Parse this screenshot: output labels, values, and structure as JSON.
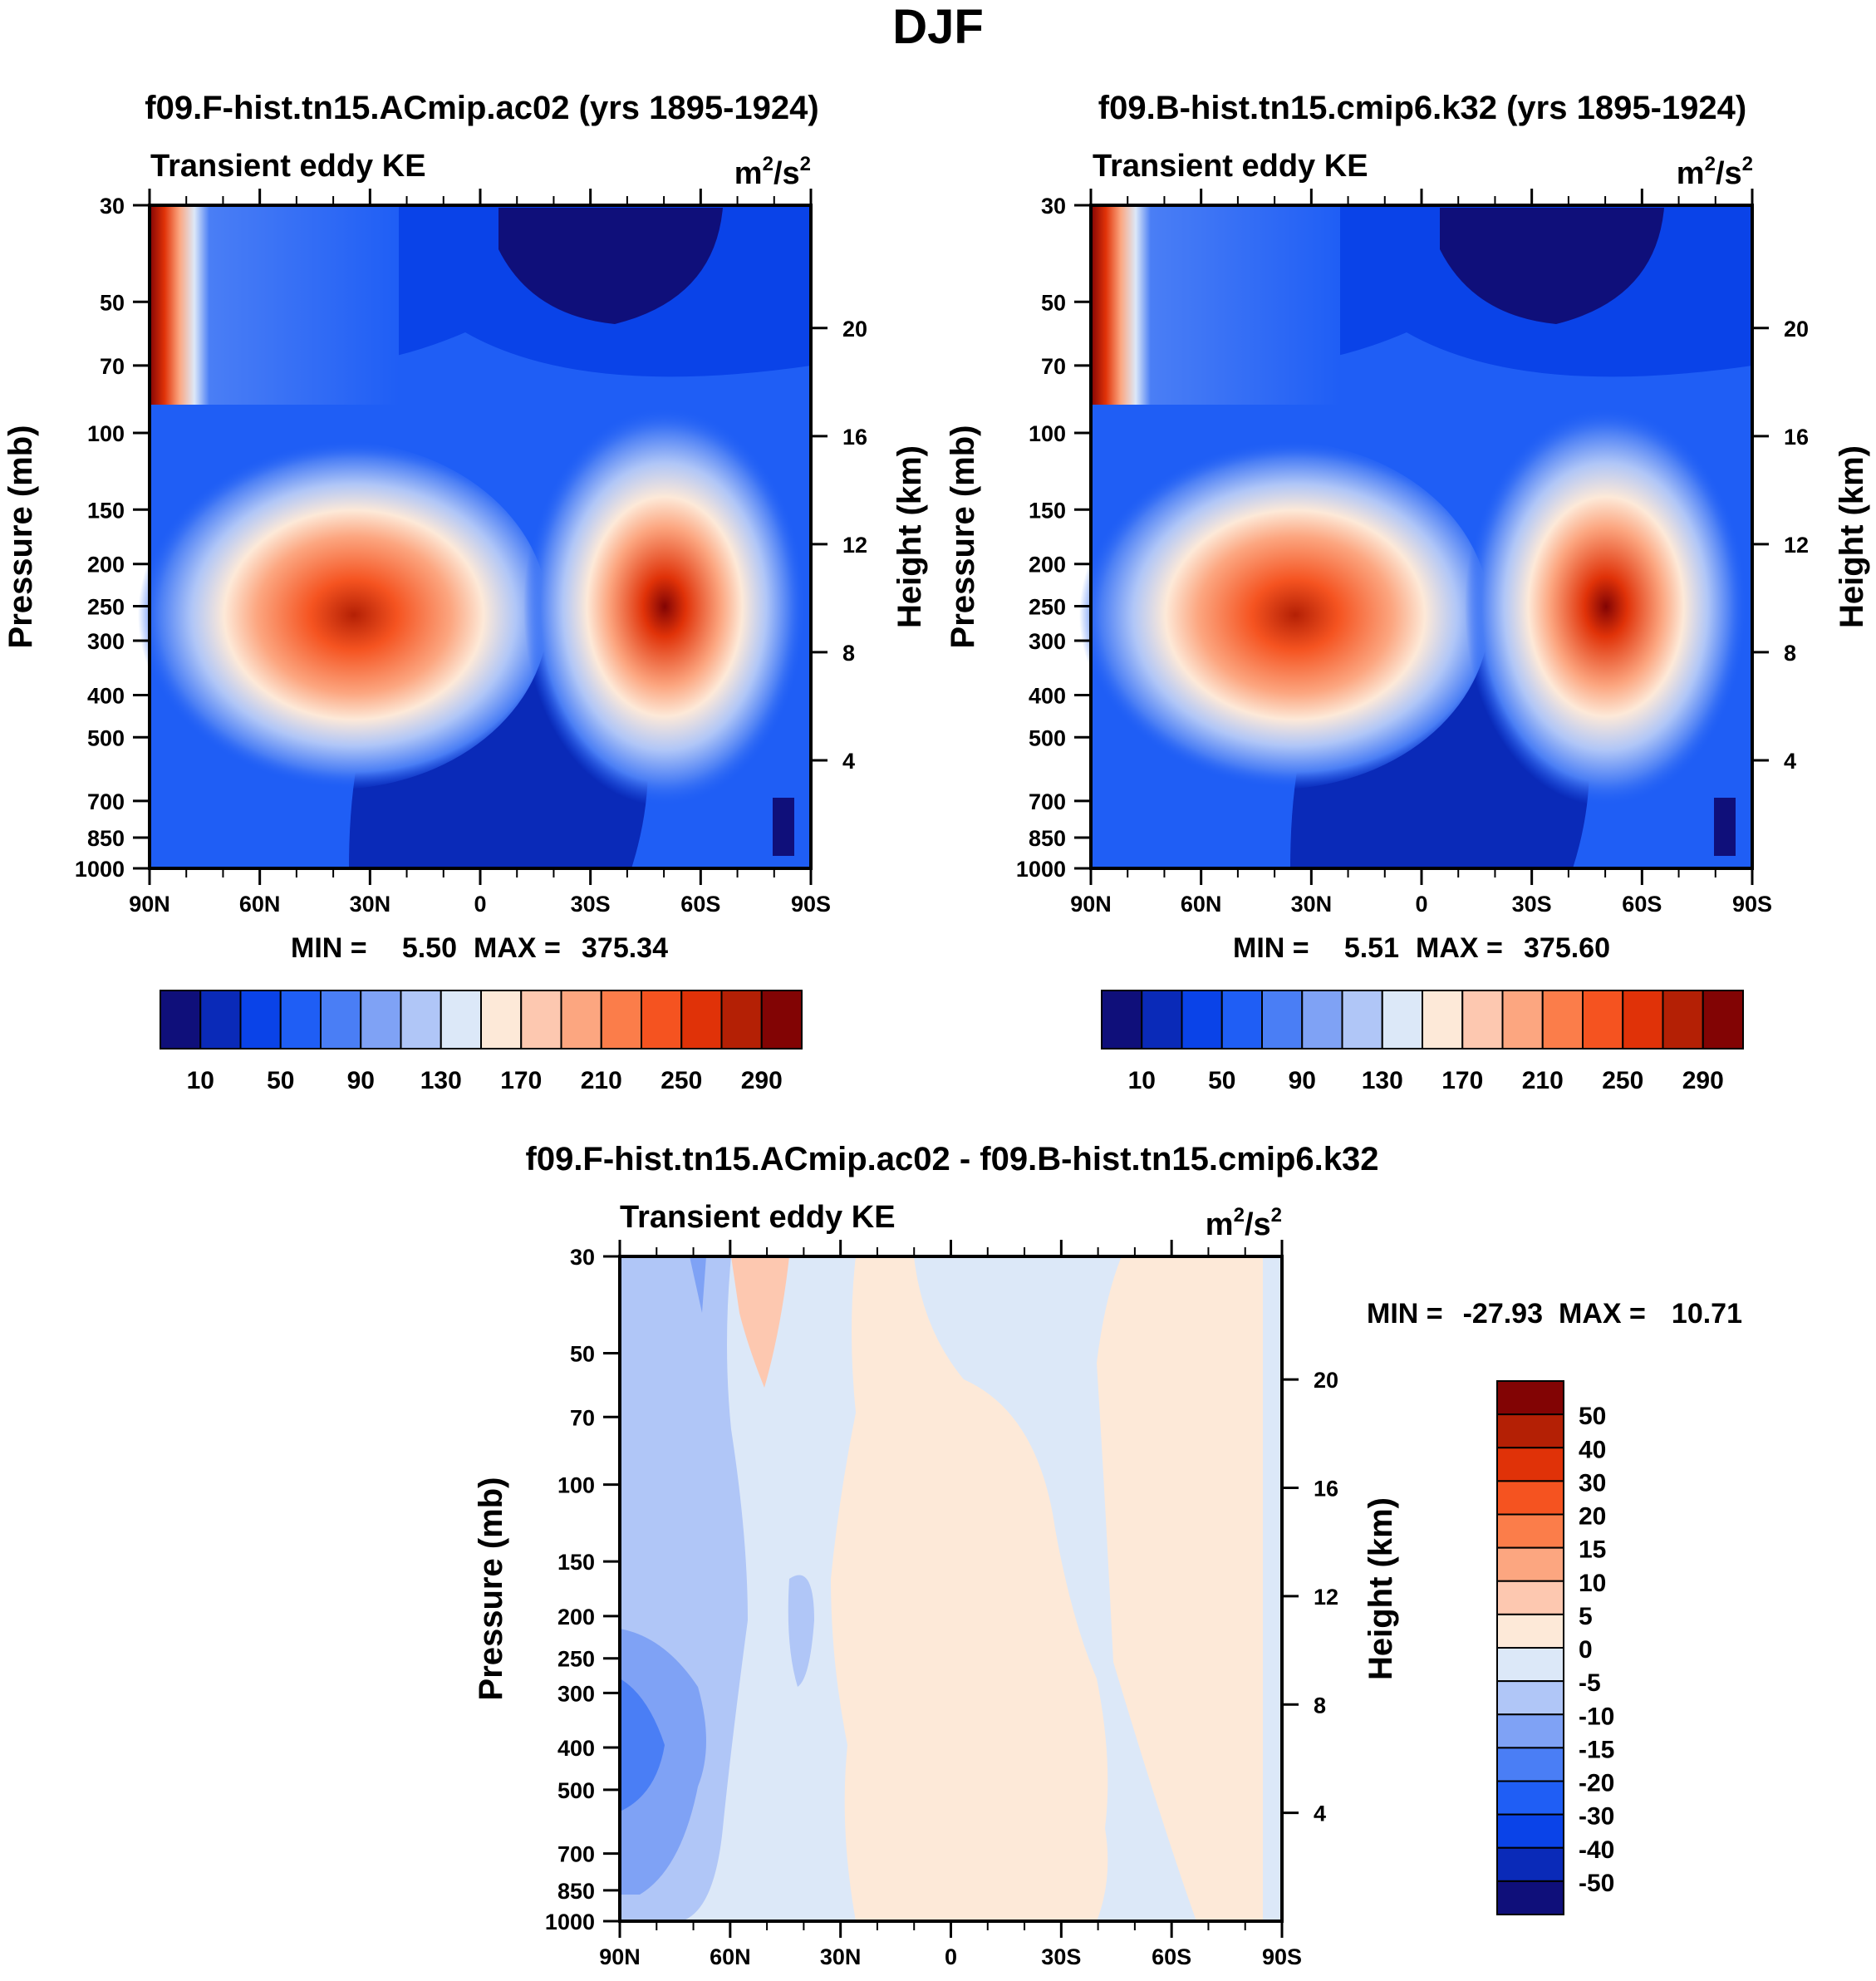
{
  "figure_title": "DJF",
  "colors": {
    "main_scale": [
      "#0f0f7a",
      "#0a2ab8",
      "#0a43e8",
      "#1f5ef5",
      "#4a7ef5",
      "#7fa2f5",
      "#b0c6f7",
      "#dce8f8",
      "#fde9d8",
      "#fdc8b0",
      "#fca680",
      "#fb7d4a",
      "#f55320",
      "#e03208",
      "#b42005",
      "#820404"
    ],
    "diff_scale": [
      "#0f0f7a",
      "#0a2ab8",
      "#0a43e8",
      "#1f5ef5",
      "#4a7ef5",
      "#7fa2f5",
      "#b0c6f7",
      "#dce8f8",
      "#fde9d8",
      "#fdc8b0",
      "#fca680",
      "#fb7d4a",
      "#f55320",
      "#e03208",
      "#b42005",
      "#820404"
    ]
  },
  "chart_data": [
    {
      "type": "heatmap",
      "title": "f09.F-hist.tn15.ACmip.ac02 (yrs 1895-1924)",
      "subtitle": "Transient eddy KE",
      "units": "m²/s²",
      "units_base": "m",
      "units_sup1": "2",
      "units_mid": "/s",
      "units_sup2": "2",
      "ylabel": "Pressure (mb)",
      "y2label": "Height (km)",
      "x_ticks": [
        "90N",
        "60N",
        "30N",
        "0",
        "30S",
        "60S",
        "90S"
      ],
      "x_values": [
        90,
        60,
        30,
        0,
        -30,
        -60,
        -90
      ],
      "y_ticks": [
        "30",
        "50",
        "70",
        "100",
        "150",
        "200",
        "250",
        "300",
        "400",
        "500",
        "700",
        "850",
        "1000"
      ],
      "y_values": [
        30,
        50,
        70,
        100,
        150,
        200,
        250,
        300,
        400,
        500,
        700,
        850,
        1000
      ],
      "y2_ticks": [
        "20",
        "16",
        "12",
        "8",
        "4"
      ],
      "y2_values": [
        20,
        16,
        12,
        8,
        4
      ],
      "stats": {
        "min_label": "MIN =",
        "min": "5.50",
        "max_label": "MAX =",
        "max": "375.34"
      },
      "field_peaks": [
        {
          "lat": 40,
          "p": 270,
          "value": 360
        },
        {
          "lat": -50,
          "p": 260,
          "value": 375
        }
      ],
      "colorbar": {
        "labels": [
          "10",
          "50",
          "90",
          "130",
          "170",
          "210",
          "250",
          "290"
        ]
      }
    },
    {
      "type": "heatmap",
      "title": "f09.B-hist.tn15.cmip6.k32 (yrs 1895-1924)",
      "subtitle": "Transient eddy KE",
      "units": "m²/s²",
      "units_base": "m",
      "units_sup1": "2",
      "units_mid": "/s",
      "units_sup2": "2",
      "ylabel": "Pressure (mb)",
      "y2label": "Height (km)",
      "x_ticks": [
        "90N",
        "60N",
        "30N",
        "0",
        "30S",
        "60S",
        "90S"
      ],
      "x_values": [
        90,
        60,
        30,
        0,
        -30,
        -60,
        -90
      ],
      "y_ticks": [
        "30",
        "50",
        "70",
        "100",
        "150",
        "200",
        "250",
        "300",
        "400",
        "500",
        "700",
        "850",
        "1000"
      ],
      "y_values": [
        30,
        50,
        70,
        100,
        150,
        200,
        250,
        300,
        400,
        500,
        700,
        850,
        1000
      ],
      "y2_ticks": [
        "20",
        "16",
        "12",
        "8",
        "4"
      ],
      "y2_values": [
        20,
        16,
        12,
        8,
        4
      ],
      "stats": {
        "min_label": "MIN =",
        "min": "5.51",
        "max_label": "MAX =",
        "max": "375.60"
      },
      "field_peaks": [
        {
          "lat": 40,
          "p": 270,
          "value": 360
        },
        {
          "lat": -50,
          "p": 260,
          "value": 376
        }
      ],
      "colorbar": {
        "labels": [
          "10",
          "50",
          "90",
          "130",
          "170",
          "210",
          "250",
          "290"
        ]
      }
    },
    {
      "type": "heatmap",
      "title": "f09.F-hist.tn15.ACmip.ac02 - f09.B-hist.tn15.cmip6.k32",
      "subtitle": "Transient eddy KE",
      "units": "m²/s²",
      "units_base": "m",
      "units_sup1": "2",
      "units_mid": "/s",
      "units_sup2": "2",
      "ylabel": "Pressure (mb)",
      "y2label": "Height (km)",
      "x_ticks": [
        "90N",
        "60N",
        "30N",
        "0",
        "30S",
        "60S",
        "90S"
      ],
      "x_values": [
        90,
        60,
        30,
        0,
        -30,
        -60,
        -90
      ],
      "y_ticks": [
        "30",
        "50",
        "70",
        "100",
        "150",
        "200",
        "250",
        "300",
        "400",
        "500",
        "700",
        "850",
        "1000"
      ],
      "y_values": [
        30,
        50,
        70,
        100,
        150,
        200,
        250,
        300,
        400,
        500,
        700,
        850,
        1000
      ],
      "y2_ticks": [
        "20",
        "16",
        "12",
        "8",
        "4"
      ],
      "y2_values": [
        20,
        16,
        12,
        8,
        4
      ],
      "stats": {
        "min_label": "MIN =",
        "min": "-27.93",
        "max_label": "MAX =",
        "max": "10.71"
      },
      "colorbar": {
        "labels": [
          "50",
          "40",
          "30",
          "20",
          "15",
          "10",
          "5",
          "0",
          "-5",
          "-10",
          "-15",
          "-20",
          "-30",
          "-40",
          "-50"
        ]
      }
    }
  ]
}
